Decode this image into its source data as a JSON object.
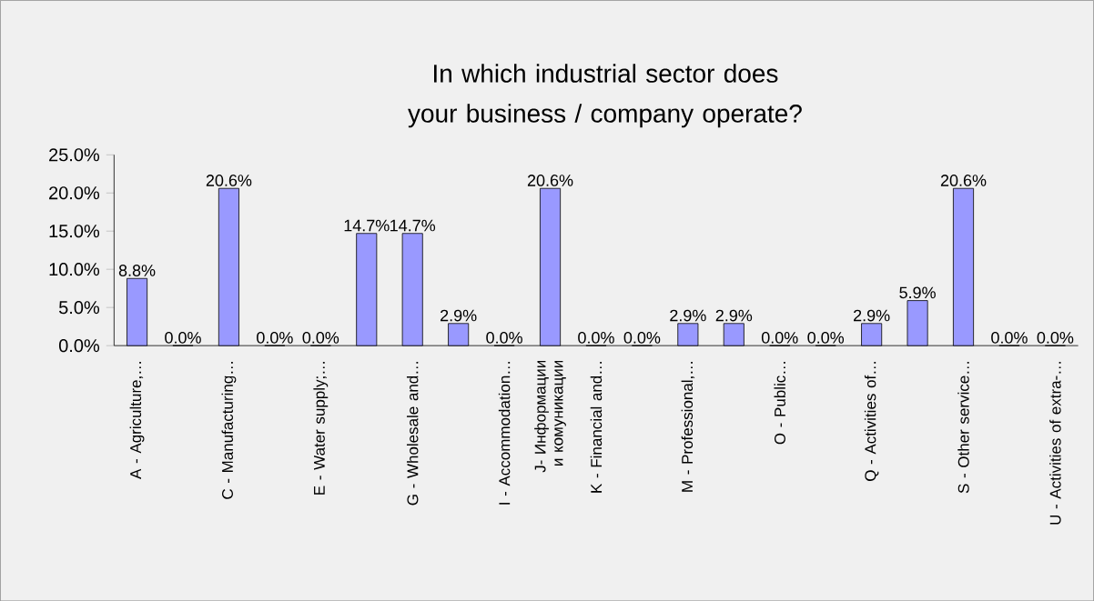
{
  "chart_data": {
    "type": "bar",
    "title": "In which industrial sector does your business / company operate?",
    "categories": [
      "A - Agriculture,…",
      null,
      "C - Manufacturing…",
      null,
      "E - Water supply;…",
      null,
      "G - Wholesale and…",
      null,
      "I - Accommodation…",
      "J- Информации и комуникации",
      "K - Financial and…",
      null,
      "M - Professional,…",
      null,
      "O - Public…",
      null,
      "Q - Activities of…",
      null,
      "S - Other service…",
      null,
      "U - Activities of extra-…"
    ],
    "values": [
      8.8,
      0.0,
      20.6,
      0.0,
      0.0,
      14.7,
      14.7,
      2.9,
      0.0,
      20.6,
      0.0,
      0.0,
      2.9,
      2.9,
      0.0,
      0.0,
      2.9,
      5.9,
      20.6,
      0.0,
      0.0
    ],
    "value_labels": [
      "8.8%",
      "0.0%",
      "20.6%",
      "0.0%",
      "0.0%",
      "14.7%",
      "14.7%",
      "2.9%",
      "0.0%",
      "20.6%",
      "0.0%",
      "0.0%",
      "2.9%",
      "2.9%",
      "0.0%",
      "0.0%",
      "2.9%",
      "5.9%",
      "20.6%",
      "0.0%",
      "0.0%"
    ],
    "color": "#9999ff",
    "ylim": [
      0,
      25
    ],
    "yticks": [
      {
        "value": 0,
        "label": "0.0%"
      },
      {
        "value": 5,
        "label": "5.0%"
      },
      {
        "value": 10,
        "label": "10.0%"
      },
      {
        "value": 15,
        "label": "15.0%"
      },
      {
        "value": 20,
        "label": "20.0%"
      },
      {
        "value": 25,
        "label": "25.0%"
      }
    ]
  }
}
